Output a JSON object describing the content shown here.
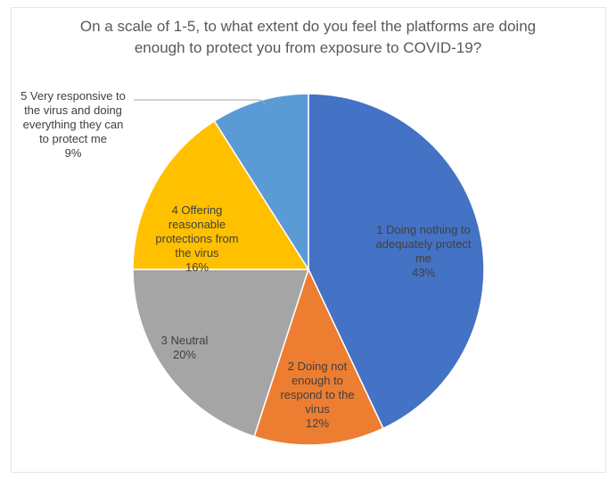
{
  "chart_data": {
    "type": "pie",
    "title_lines": [
      "On a scale of 1-5, to what extent do you feel the platforms are doing",
      "enough to protect you from exposure to COVID-19?"
    ],
    "slices": [
      {
        "label_lines": [
          "1 Doing nothing to",
          "adequately protect",
          "me"
        ],
        "value": 43,
        "value_label": "43%",
        "color": "#4472C4"
      },
      {
        "label_lines": [
          "2 Doing not",
          "enough to",
          "respond to the",
          "virus"
        ],
        "value": 12,
        "value_label": "12%",
        "color": "#ED7D31"
      },
      {
        "label_lines": [
          "3 Neutral"
        ],
        "value": 20,
        "value_label": "20%",
        "color": "#A5A5A5"
      },
      {
        "label_lines": [
          "4 Offering",
          "reasonable",
          "protections from",
          "the virus"
        ],
        "value": 16,
        "value_label": "16%",
        "color": "#FFC000"
      },
      {
        "label_lines": [
          "5 Very responsive to",
          "the virus and doing",
          "everything they can",
          "to protect me"
        ],
        "value": 9,
        "value_label": "9%",
        "color": "#5B9BD5"
      }
    ],
    "start_angle_deg": 0,
    "direction": "clockwise",
    "legend": "none",
    "data_labels": "category and percent"
  }
}
